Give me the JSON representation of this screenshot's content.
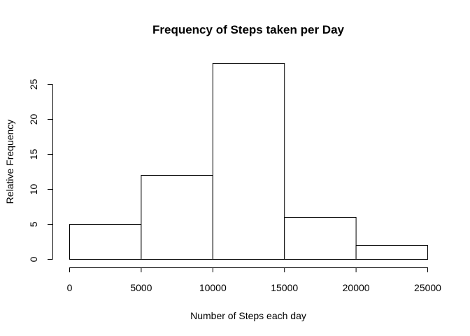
{
  "chart_data": {
    "type": "bar",
    "title": "Frequency of Steps taken per Day",
    "xlabel": "Number of Steps each day",
    "ylabel": "Relative Frequency",
    "bins": [
      {
        "from": 0,
        "to": 5000,
        "value": 5
      },
      {
        "from": 5000,
        "to": 10000,
        "value": 12
      },
      {
        "from": 10000,
        "to": 15000,
        "value": 28
      },
      {
        "from": 15000,
        "to": 20000,
        "value": 6
      },
      {
        "from": 20000,
        "to": 25000,
        "value": 2
      }
    ],
    "xlim": [
      0,
      25000
    ],
    "ylim": [
      0,
      28
    ],
    "xticks": [
      0,
      5000,
      10000,
      15000,
      20000,
      25000
    ],
    "yticks": [
      0,
      5,
      10,
      15,
      20,
      25
    ],
    "grid": false,
    "colors": {
      "bar_fill": "#ffffff",
      "bar_stroke": "#000000"
    }
  }
}
